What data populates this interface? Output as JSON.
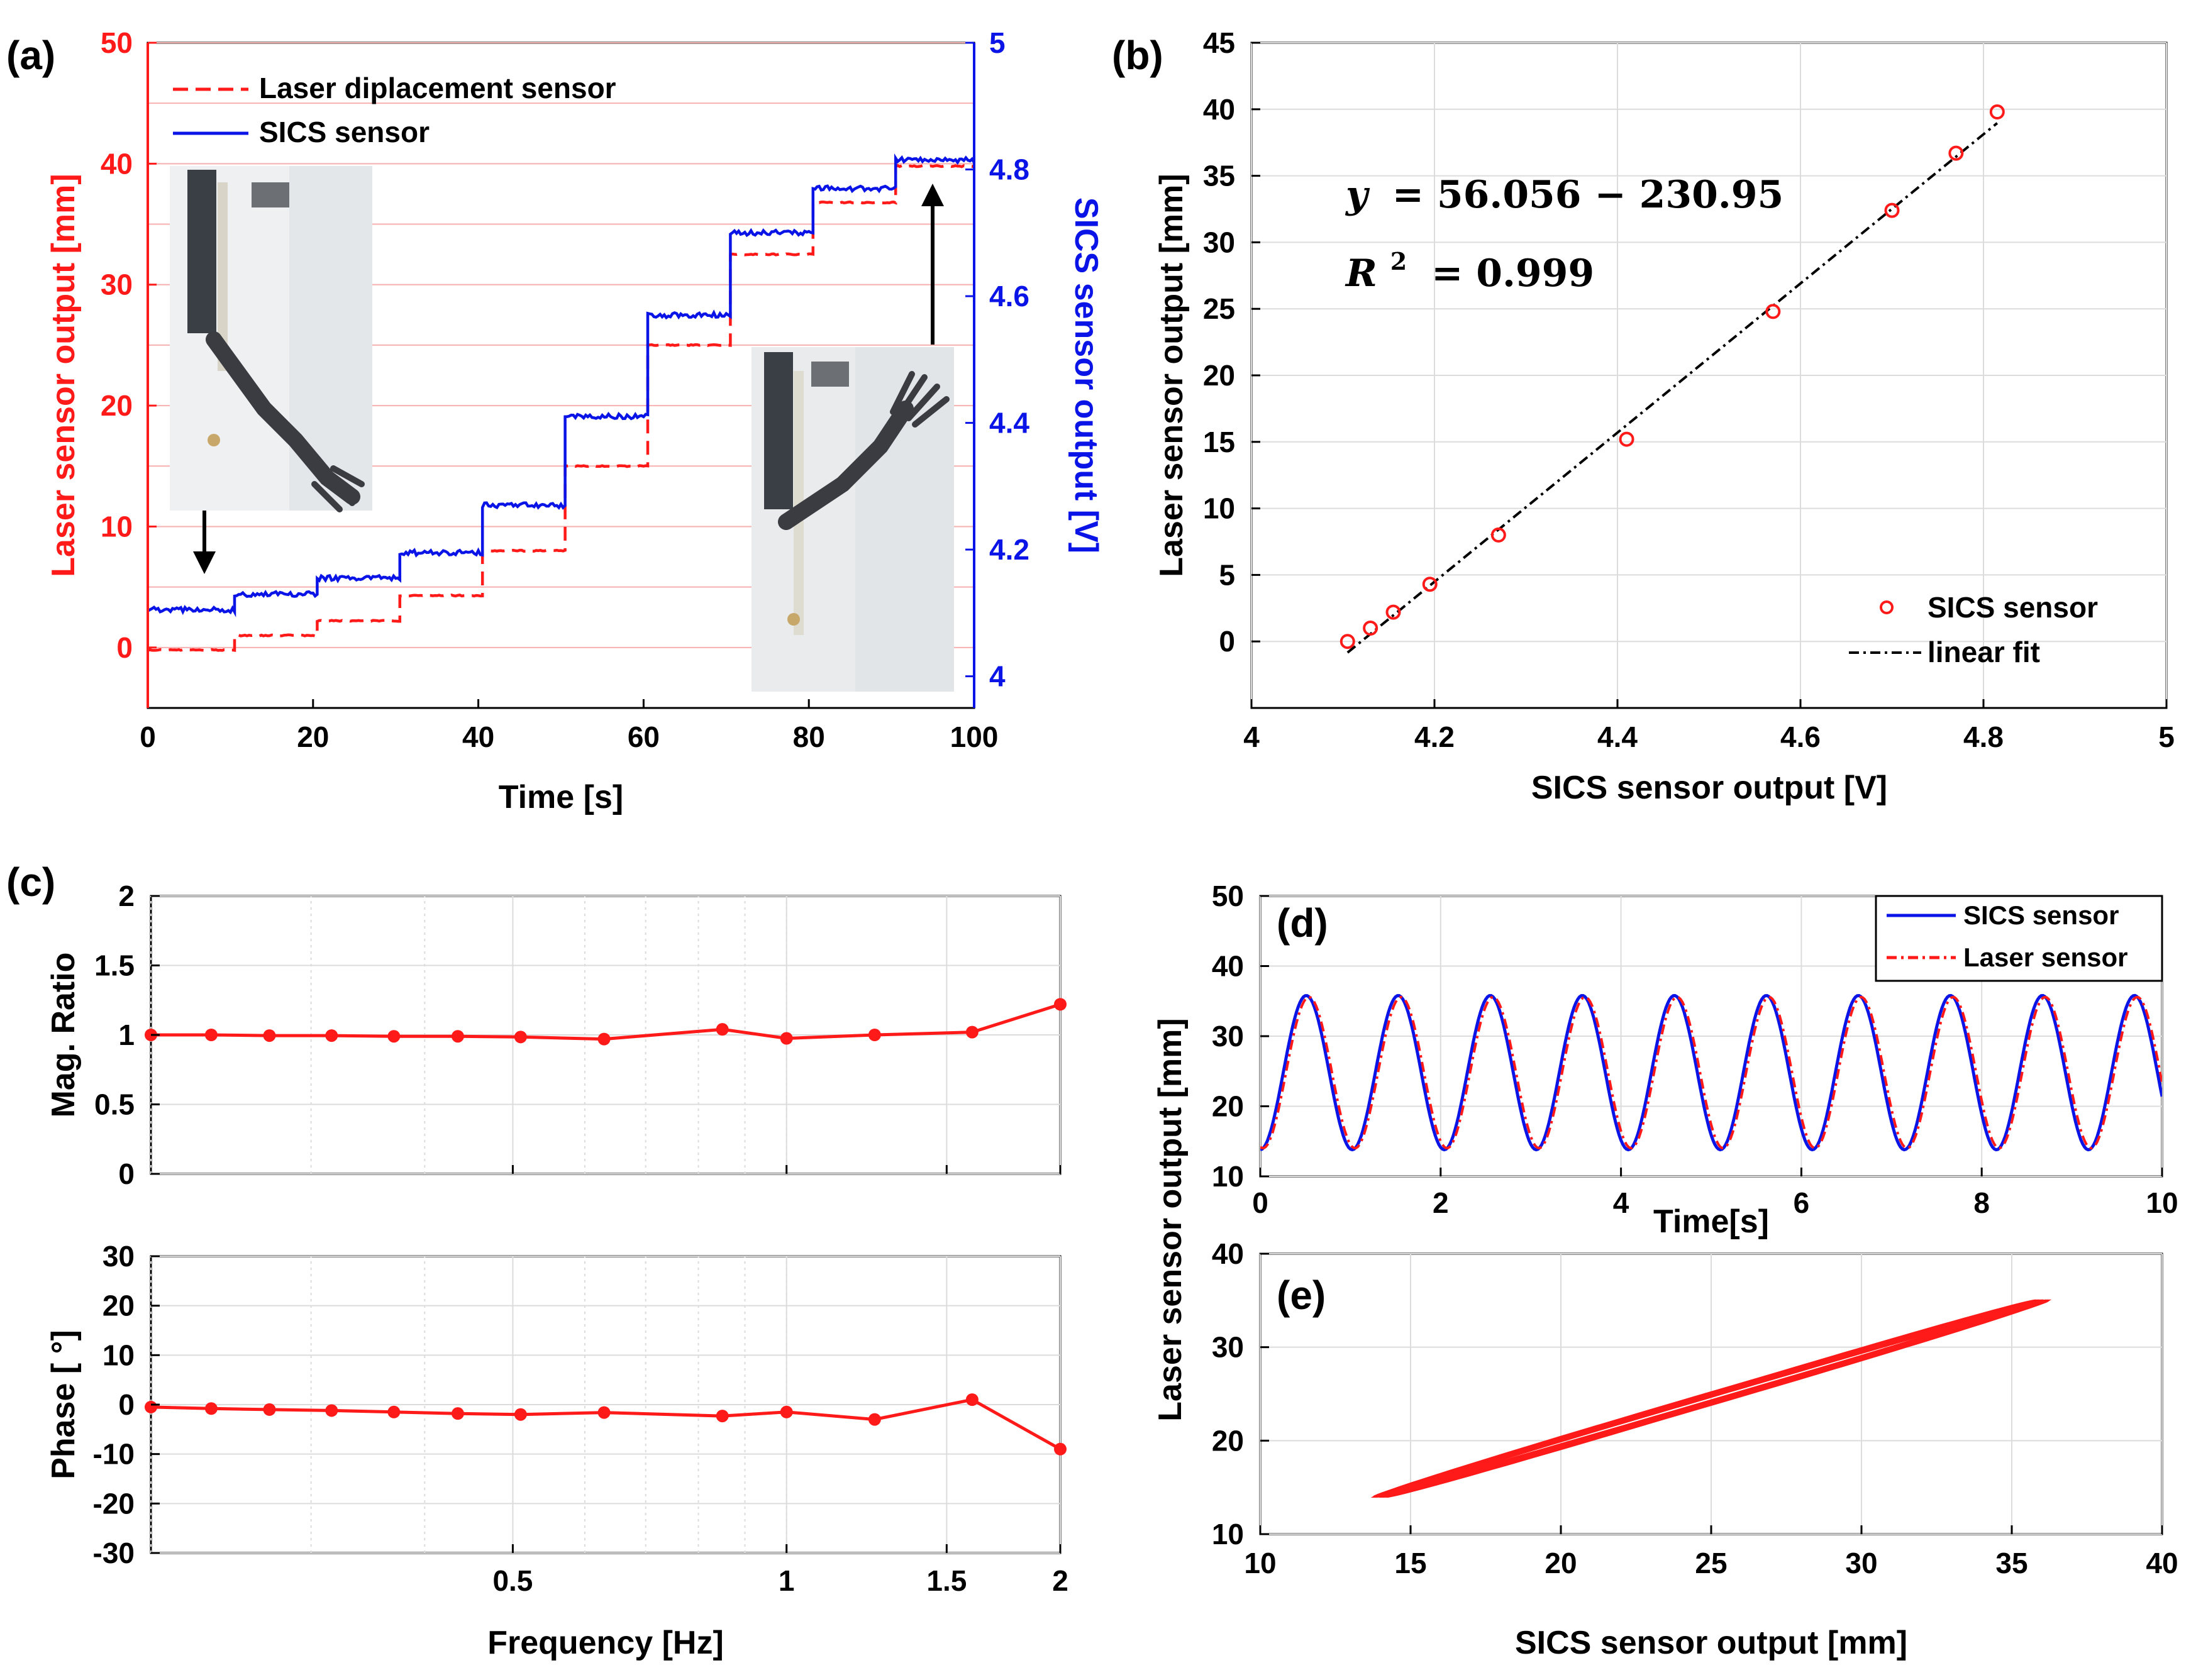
{
  "colors": {
    "red": "#ff1a1a",
    "blue": "#0a14e6",
    "black": "#000000",
    "grid": "#dcdcdc",
    "pinkgrid": "#f7b0b0"
  },
  "chart_data": [
    {
      "panel": "(a)",
      "type": "line",
      "xlabel": "Time [s]",
      "ylabel": "Laser sensor output [mm]",
      "y2label": "SICS sensor output [V]",
      "xlim": [
        0,
        100
      ],
      "ylim": [
        -5,
        50
      ],
      "y2lim": [
        3.95,
        5
      ],
      "xticks": [
        "0",
        "20",
        "40",
        "60",
        "80",
        "100"
      ],
      "yticks": [
        "0",
        "10",
        "20",
        "30",
        "40",
        "50"
      ],
      "y2ticks": [
        "4",
        "4.2",
        "4.4",
        "4.6",
        "4.8",
        "5"
      ],
      "legend": [
        "Laser diplacement sensor",
        "SICS sensor"
      ],
      "series": [
        {
          "name": "Laser diplacement sensor",
          "axis": "left",
          "style": "dashed",
          "steps": [
            [
              0,
              -0.2
            ],
            [
              10.5,
              1.0
            ],
            [
              20.5,
              2.2
            ],
            [
              30.5,
              4.3
            ],
            [
              40.5,
              8.0
            ],
            [
              50.5,
              15.0
            ],
            [
              60.5,
              25.0
            ],
            [
              70.5,
              32.5
            ],
            [
              80.5,
              36.8
            ],
            [
              90.5,
              39.8
            ]
          ],
          "end": 100
        },
        {
          "name": "SICS sensor",
          "axis": "right",
          "style": "solid",
          "steps": [
            [
              0,
              4.105
            ],
            [
              10.5,
              4.13
            ],
            [
              20.5,
              4.155
            ],
            [
              30.5,
              4.195
            ],
            [
              40.5,
              4.27
            ],
            [
              50.5,
              4.41
            ],
            [
              60.5,
              4.57
            ],
            [
              70.5,
              4.7
            ],
            [
              80.5,
              4.77
            ],
            [
              90.5,
              4.815
            ]
          ],
          "end": 100
        }
      ],
      "annotations": [
        "arrow-down near start",
        "arrow-up near end",
        "robot-arm photo insets"
      ]
    },
    {
      "panel": "(b)",
      "type": "scatter",
      "xlabel": "SICS sensor output [V]",
      "ylabel": "Laser sensor output [mm]",
      "xlim": [
        4,
        5
      ],
      "ylim": [
        -5,
        45
      ],
      "xticks": [
        "4",
        "4.2",
        "4.4",
        "4.6",
        "4.8",
        "5"
      ],
      "yticks": [
        "0",
        "5",
        "10",
        "15",
        "20",
        "25",
        "30",
        "35",
        "40",
        "45"
      ],
      "points": [
        [
          4.105,
          0
        ],
        [
          4.13,
          1.0
        ],
        [
          4.155,
          2.2
        ],
        [
          4.195,
          4.3
        ],
        [
          4.27,
          8.0
        ],
        [
          4.41,
          15.2
        ],
        [
          4.57,
          24.8
        ],
        [
          4.7,
          32.4
        ],
        [
          4.77,
          36.7
        ],
        [
          4.815,
          39.8
        ]
      ],
      "fit": {
        "slope": 56.056,
        "intercept": -230.95,
        "x_range": [
          4.105,
          4.815
        ]
      },
      "equation_lhs": "y",
      "equation_rhs": "= 56.056 − 230.95",
      "r2_lhs": "R",
      "r2_sup": "2",
      "r2_rhs": "= 0.999",
      "legend": [
        "SICS sensor",
        "linear fit"
      ]
    },
    {
      "panel": "(c)",
      "type": "line",
      "subplots": [
        {
          "ylabel": "Mag. Ratio",
          "ylim": [
            0,
            2
          ],
          "yticks": [
            "0",
            "0.5",
            "1",
            "1.5",
            "2"
          ],
          "points": [
            [
              0.2,
              1.0
            ],
            [
              0.233,
              1.0
            ],
            [
              0.27,
              0.995
            ],
            [
              0.316,
              0.995
            ],
            [
              0.37,
              0.99
            ],
            [
              0.435,
              0.99
            ],
            [
              0.51,
              0.985
            ],
            [
              0.63,
              0.97
            ],
            [
              0.85,
              1.04
            ],
            [
              1.0,
              0.975
            ],
            [
              1.25,
              1.0
            ],
            [
              1.6,
              1.02
            ],
            [
              2.0,
              1.22
            ]
          ]
        },
        {
          "ylabel": "Phase [ °]",
          "ylim": [
            -30,
            30
          ],
          "yticks": [
            "-30",
            "-20",
            "-10",
            "0",
            "10",
            "20",
            "30"
          ],
          "points": [
            [
              0.2,
              -0.5
            ],
            [
              0.233,
              -0.8
            ],
            [
              0.27,
              -1.0
            ],
            [
              0.316,
              -1.2
            ],
            [
              0.37,
              -1.5
            ],
            [
              0.435,
              -1.8
            ],
            [
              0.51,
              -2.0
            ],
            [
              0.63,
              -1.6
            ],
            [
              0.85,
              -2.3
            ],
            [
              1.0,
              -1.5
            ],
            [
              1.25,
              -3.0
            ],
            [
              1.6,
              1.0
            ],
            [
              2.0,
              -9.0
            ]
          ]
        }
      ],
      "xscale": "log",
      "xlim": [
        0.2,
        2
      ],
      "xlabel": "Frequency [Hz]",
      "xticks": [
        "0.5",
        "1",
        "1.5",
        "2"
      ]
    },
    {
      "panel": "(d)",
      "type": "line",
      "xlabel": "Time[s]",
      "ylabel": "Laser sensor output [mm]",
      "xlim": [
        0,
        10
      ],
      "ylim": [
        10,
        50
      ],
      "xticks": [
        "0",
        "2",
        "4",
        "6",
        "8",
        "10"
      ],
      "yticks": [
        "10",
        "20",
        "30",
        "40",
        "50"
      ],
      "signal": {
        "frequency_hz": 0.98,
        "mean": 24.8,
        "amplitude": 11.0,
        "phase_rad": -1.57
      },
      "legend": [
        "SICS sensor",
        "Laser sensor"
      ]
    },
    {
      "panel": "(e)",
      "type": "line",
      "xlabel": "SICS sensor output [mm]",
      "ylabel": "",
      "xlim": [
        10,
        40
      ],
      "ylim": [
        10,
        40
      ],
      "xticks": [
        "10",
        "15",
        "20",
        "25",
        "30",
        "35",
        "40"
      ],
      "yticks": [
        "10",
        "20",
        "30",
        "40"
      ],
      "loop": {
        "x_range": [
          14,
          36
        ],
        "y_range": [
          14,
          35
        ],
        "cycles": 10
      }
    }
  ],
  "panel_labels": [
    "(a)",
    "(b)",
    "(c)",
    "(d)",
    "(e)"
  ]
}
